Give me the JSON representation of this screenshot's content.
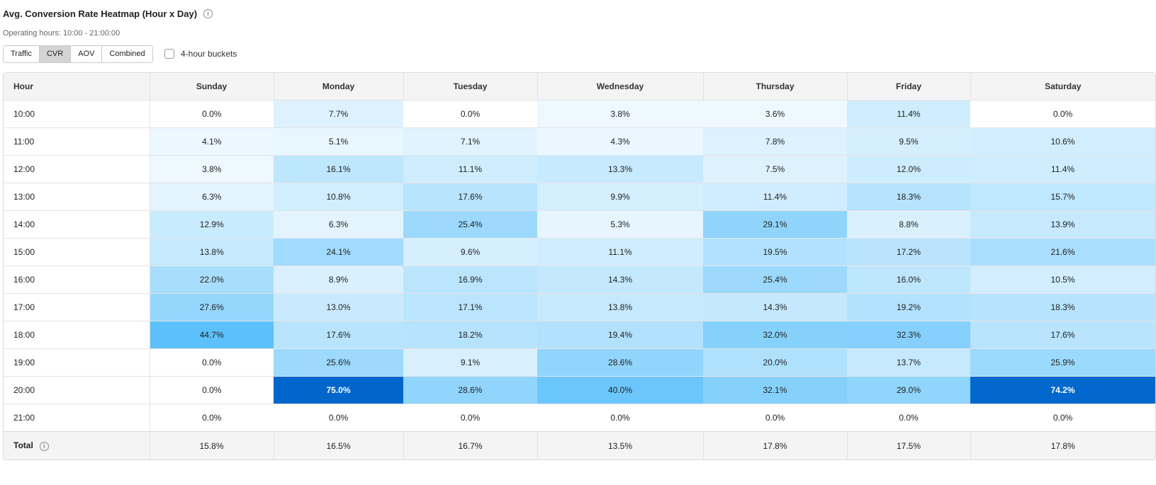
{
  "header": {
    "title": "Avg. Conversion Rate Heatmap (Hour x Day)",
    "info_icon": "info-icon",
    "subtitle": "Operating hours: 10:00 - 21:00:00"
  },
  "controls": {
    "toggles": [
      {
        "label": "Traffic",
        "active": false
      },
      {
        "label": "CVR",
        "active": true
      },
      {
        "label": "AOV",
        "active": false
      },
      {
        "label": "Combined",
        "active": false
      }
    ],
    "bucket_checkbox": {
      "label": "4-hour buckets",
      "checked": false
    }
  },
  "table": {
    "hour_header": "Hour",
    "days": [
      "Sunday",
      "Monday",
      "Tuesday",
      "Wednesday",
      "Thursday",
      "Friday",
      "Saturday"
    ],
    "rows": [
      {
        "hour": "10:00",
        "cells": [
          "0.0%",
          "7.7%",
          "0.0%",
          "3.8%",
          "3.6%",
          "11.4%",
          "0.0%"
        ]
      },
      {
        "hour": "11:00",
        "cells": [
          "4.1%",
          "5.1%",
          "7.1%",
          "4.3%",
          "7.8%",
          "9.5%",
          "10.6%"
        ]
      },
      {
        "hour": "12:00",
        "cells": [
          "3.8%",
          "16.1%",
          "11.1%",
          "13.3%",
          "7.5%",
          "12.0%",
          "11.4%"
        ]
      },
      {
        "hour": "13:00",
        "cells": [
          "6.3%",
          "10.8%",
          "17.6%",
          "9.9%",
          "11.4%",
          "18.3%",
          "15.7%"
        ]
      },
      {
        "hour": "14:00",
        "cells": [
          "12.9%",
          "6.3%",
          "25.4%",
          "5.3%",
          "29.1%",
          "8.8%",
          "13.9%"
        ]
      },
      {
        "hour": "15:00",
        "cells": [
          "13.8%",
          "24.1%",
          "9.6%",
          "11.1%",
          "19.5%",
          "17.2%",
          "21.6%"
        ]
      },
      {
        "hour": "16:00",
        "cells": [
          "22.0%",
          "8.9%",
          "16.9%",
          "14.3%",
          "25.4%",
          "16.0%",
          "10.5%"
        ]
      },
      {
        "hour": "17:00",
        "cells": [
          "27.6%",
          "13.0%",
          "17.1%",
          "13.8%",
          "14.3%",
          "19.2%",
          "18.3%"
        ]
      },
      {
        "hour": "18:00",
        "cells": [
          "44.7%",
          "17.6%",
          "18.2%",
          "19.4%",
          "32.0%",
          "32.3%",
          "17.6%"
        ]
      },
      {
        "hour": "19:00",
        "cells": [
          "0.0%",
          "25.6%",
          "9.1%",
          "28.6%",
          "20.0%",
          "13.7%",
          "25.9%"
        ]
      },
      {
        "hour": "20:00",
        "cells": [
          "0.0%",
          "75.0%",
          "28.6%",
          "40.0%",
          "32.1%",
          "29.0%",
          "74.2%"
        ]
      },
      {
        "hour": "21:00",
        "cells": [
          "0.0%",
          "0.0%",
          "0.0%",
          "0.0%",
          "0.0%",
          "0.0%",
          "0.0%"
        ]
      }
    ],
    "total": {
      "label": "Total",
      "cells": [
        "15.8%",
        "16.5%",
        "16.7%",
        "13.5%",
        "17.8%",
        "17.5%",
        "17.8%"
      ]
    }
  },
  "colors": {
    "heat_low": "#ffffff",
    "heat_mid": "#5ac0fb",
    "heat_high": "#0066cc"
  }
}
